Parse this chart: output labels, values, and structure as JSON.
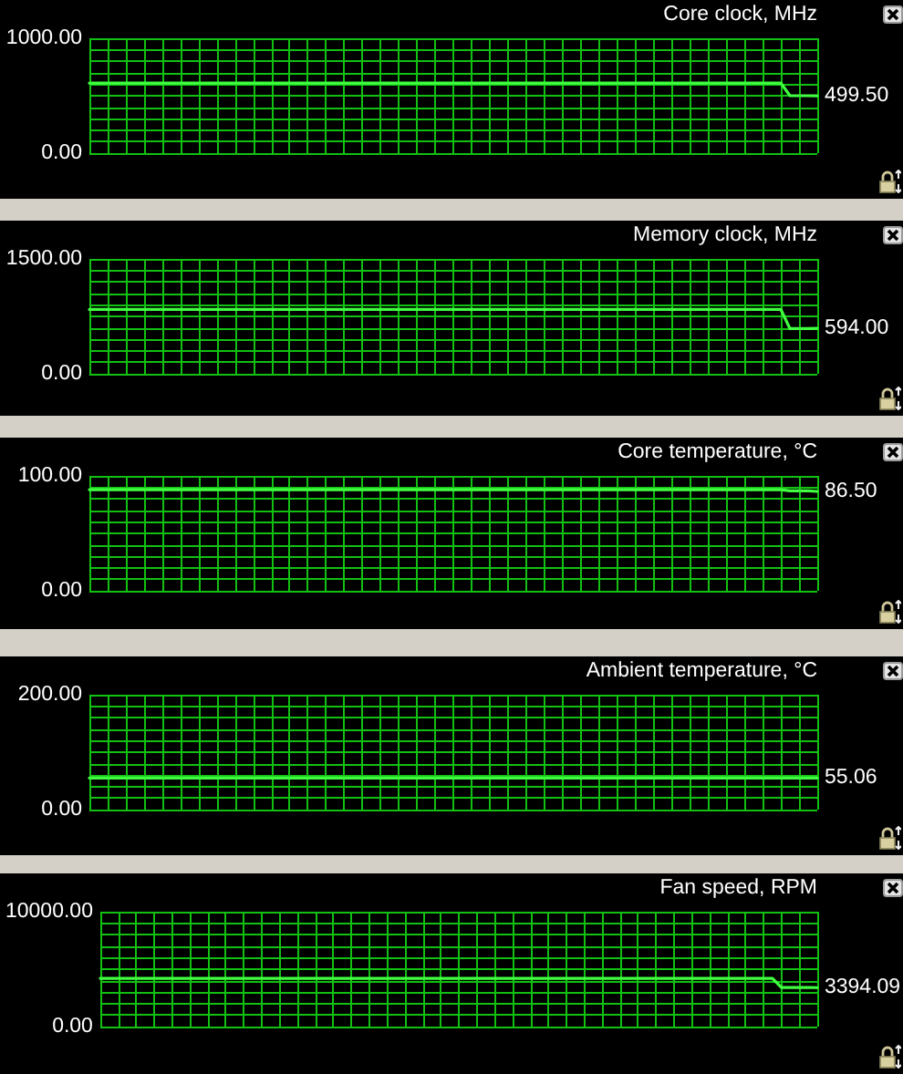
{
  "chart_data": [
    {
      "type": "line",
      "title": "Core clock, MHz",
      "categories": [
        null,
        null,
        null,
        null,
        null,
        null,
        null,
        null,
        null,
        null,
        null,
        null,
        null,
        null,
        null,
        null,
        null,
        null,
        null,
        null,
        null,
        null,
        null,
        null,
        null,
        null,
        null,
        null,
        null,
        null,
        null,
        null,
        null,
        null,
        null,
        null,
        null,
        null,
        null,
        null,
        null,
        null,
        null,
        null,
        null,
        null,
        null,
        null,
        null,
        null,
        null,
        null,
        null,
        null,
        null,
        null,
        null,
        null,
        null,
        null,
        null,
        null,
        null,
        null,
        null,
        null,
        null,
        null,
        null,
        null,
        null,
        null,
        null,
        null,
        null,
        null,
        null,
        null,
        null,
        null,
        null
      ],
      "series": [
        {
          "color": "#40ff40",
          "values": [
            610,
            610,
            610,
            610,
            610,
            610,
            610,
            610,
            610,
            610,
            610,
            610,
            610,
            610,
            610,
            610,
            610,
            610,
            610,
            610,
            610,
            610,
            610,
            610,
            610,
            610,
            610,
            610,
            610,
            610,
            610,
            610,
            610,
            610,
            610,
            610,
            610,
            610,
            610,
            610,
            610,
            610,
            610,
            610,
            610,
            610,
            610,
            610,
            610,
            610,
            610,
            610,
            610,
            610,
            610,
            610,
            610,
            610,
            610,
            610,
            610,
            610,
            610,
            610,
            610,
            610,
            610,
            610,
            610,
            610,
            610,
            610,
            610,
            610,
            610,
            610,
            610,
            500,
            500,
            500,
            499.5
          ],
          "value_labels": [
            null,
            null,
            null,
            null,
            null,
            null,
            null,
            null,
            null,
            null,
            null,
            null,
            null,
            null,
            null,
            null,
            null,
            null,
            null,
            null,
            null,
            null,
            null,
            null,
            null,
            null,
            null,
            null,
            null,
            null,
            null,
            null,
            null,
            null,
            null,
            null,
            null,
            null,
            null,
            null,
            null,
            null,
            null,
            null,
            null,
            null,
            null,
            null,
            null,
            null,
            null,
            null,
            null,
            null,
            null,
            null,
            null,
            null,
            null,
            null,
            null,
            null,
            null,
            null,
            null,
            null,
            null,
            null,
            null,
            null,
            null,
            null,
            null,
            null,
            null,
            null,
            null,
            null,
            null,
            null,
            "499.50"
          ]
        }
      ],
      "ylim": [
        0,
        1000
      ],
      "yticks": [
        {
          "value": 0,
          "label": "0.00"
        },
        {
          "value": 100,
          "label": null
        },
        {
          "value": 200,
          "label": null
        },
        {
          "value": 300,
          "label": null
        },
        {
          "value": 400,
          "label": null
        },
        {
          "value": 500,
          "label": null
        },
        {
          "value": 600,
          "label": null
        },
        {
          "value": 700,
          "label": null
        },
        {
          "value": 800,
          "label": null
        },
        {
          "value": 900,
          "label": null
        },
        {
          "value": 1000,
          "label": "1000.00"
        }
      ],
      "grid": true,
      "marker": "none",
      "tick_labels": "y"
    },
    {
      "type": "line",
      "title": "Memory clock, MHz",
      "categories": [
        null,
        null,
        null,
        null,
        null,
        null,
        null,
        null,
        null,
        null,
        null,
        null,
        null,
        null,
        null,
        null,
        null,
        null,
        null,
        null,
        null,
        null,
        null,
        null,
        null,
        null,
        null,
        null,
        null,
        null,
        null,
        null,
        null,
        null,
        null,
        null,
        null,
        null,
        null,
        null,
        null,
        null,
        null,
        null,
        null,
        null,
        null,
        null,
        null,
        null,
        null,
        null,
        null,
        null,
        null,
        null,
        null,
        null,
        null,
        null,
        null,
        null,
        null,
        null,
        null,
        null,
        null,
        null,
        null,
        null,
        null,
        null,
        null,
        null,
        null,
        null,
        null,
        null,
        null,
        null,
        null
      ],
      "series": [
        {
          "color": "#40ff40",
          "values": [
            840,
            840,
            840,
            840,
            840,
            840,
            840,
            840,
            840,
            840,
            840,
            840,
            840,
            840,
            840,
            840,
            840,
            840,
            840,
            840,
            840,
            840,
            840,
            840,
            840,
            840,
            840,
            840,
            840,
            840,
            840,
            840,
            840,
            840,
            840,
            840,
            840,
            840,
            840,
            840,
            840,
            840,
            840,
            840,
            840,
            840,
            840,
            840,
            840,
            840,
            840,
            840,
            840,
            840,
            840,
            840,
            840,
            840,
            840,
            840,
            840,
            840,
            840,
            840,
            840,
            840,
            840,
            840,
            840,
            840,
            840,
            840,
            840,
            840,
            840,
            840,
            840,
            590,
            590,
            590,
            594
          ],
          "value_labels": [
            null,
            null,
            null,
            null,
            null,
            null,
            null,
            null,
            null,
            null,
            null,
            null,
            null,
            null,
            null,
            null,
            null,
            null,
            null,
            null,
            null,
            null,
            null,
            null,
            null,
            null,
            null,
            null,
            null,
            null,
            null,
            null,
            null,
            null,
            null,
            null,
            null,
            null,
            null,
            null,
            null,
            null,
            null,
            null,
            null,
            null,
            null,
            null,
            null,
            null,
            null,
            null,
            null,
            null,
            null,
            null,
            null,
            null,
            null,
            null,
            null,
            null,
            null,
            null,
            null,
            null,
            null,
            null,
            null,
            null,
            null,
            null,
            null,
            null,
            null,
            null,
            null,
            null,
            null,
            null,
            "594.00"
          ]
        }
      ],
      "ylim": [
        0,
        1500
      ],
      "yticks": [
        {
          "value": 0,
          "label": "0.00"
        },
        {
          "value": 150,
          "label": null
        },
        {
          "value": 300,
          "label": null
        },
        {
          "value": 450,
          "label": null
        },
        {
          "value": 600,
          "label": null
        },
        {
          "value": 750,
          "label": null
        },
        {
          "value": 900,
          "label": null
        },
        {
          "value": 1050,
          "label": null
        },
        {
          "value": 1200,
          "label": null
        },
        {
          "value": 1350,
          "label": null
        },
        {
          "value": 1500,
          "label": "1500.00"
        }
      ],
      "grid": true,
      "marker": "none",
      "tick_labels": "y"
    },
    {
      "type": "line",
      "title": "Core temperature, °C",
      "categories": [
        null,
        null,
        null,
        null,
        null,
        null,
        null,
        null,
        null,
        null,
        null,
        null,
        null,
        null,
        null,
        null,
        null,
        null,
        null,
        null,
        null,
        null,
        null,
        null,
        null,
        null,
        null,
        null,
        null,
        null,
        null,
        null,
        null,
        null,
        null,
        null,
        null,
        null,
        null,
        null,
        null,
        null,
        null,
        null,
        null,
        null,
        null,
        null,
        null,
        null,
        null,
        null,
        null,
        null,
        null,
        null,
        null,
        null,
        null,
        null,
        null,
        null,
        null,
        null,
        null,
        null,
        null,
        null,
        null,
        null,
        null,
        null,
        null,
        null,
        null,
        null,
        null,
        null,
        null,
        null,
        null
      ],
      "series": [
        {
          "color": "#40ff40",
          "values": [
            88,
            88,
            88,
            88,
            88,
            88,
            88,
            88,
            88,
            88,
            88,
            88,
            88,
            88,
            88,
            88,
            88,
            88,
            88,
            88,
            88,
            88,
            88,
            88,
            88,
            88,
            88,
            88,
            88,
            88,
            88,
            88,
            88,
            88,
            88,
            88,
            88,
            88,
            88,
            88,
            88,
            88,
            88,
            88,
            88,
            88,
            88,
            88,
            88,
            88,
            88,
            88,
            88,
            88,
            88,
            88,
            88,
            88,
            88,
            88,
            88,
            88,
            88,
            88,
            88,
            88,
            88,
            88,
            88,
            88,
            88,
            88,
            88,
            88,
            88,
            88,
            88,
            87,
            87,
            87,
            86.5
          ],
          "value_labels": [
            null,
            null,
            null,
            null,
            null,
            null,
            null,
            null,
            null,
            null,
            null,
            null,
            null,
            null,
            null,
            null,
            null,
            null,
            null,
            null,
            null,
            null,
            null,
            null,
            null,
            null,
            null,
            null,
            null,
            null,
            null,
            null,
            null,
            null,
            null,
            null,
            null,
            null,
            null,
            null,
            null,
            null,
            null,
            null,
            null,
            null,
            null,
            null,
            null,
            null,
            null,
            null,
            null,
            null,
            null,
            null,
            null,
            null,
            null,
            null,
            null,
            null,
            null,
            null,
            null,
            null,
            null,
            null,
            null,
            null,
            null,
            null,
            null,
            null,
            null,
            null,
            null,
            null,
            null,
            null,
            "86.50"
          ]
        }
      ],
      "ylim": [
        0,
        100
      ],
      "yticks": [
        {
          "value": 0,
          "label": "0.00"
        },
        {
          "value": 10,
          "label": null
        },
        {
          "value": 20,
          "label": null
        },
        {
          "value": 30,
          "label": null
        },
        {
          "value": 40,
          "label": null
        },
        {
          "value": 50,
          "label": null
        },
        {
          "value": 60,
          "label": null
        },
        {
          "value": 70,
          "label": null
        },
        {
          "value": 80,
          "label": null
        },
        {
          "value": 90,
          "label": null
        },
        {
          "value": 100,
          "label": "100.00"
        }
      ],
      "grid": true,
      "marker": "none",
      "tick_labels": "y"
    },
    {
      "type": "line",
      "title": "Ambient temperature, °C",
      "categories": [
        null,
        null,
        null,
        null,
        null,
        null,
        null,
        null,
        null,
        null,
        null,
        null,
        null,
        null,
        null,
        null,
        null,
        null,
        null,
        null,
        null,
        null,
        null,
        null,
        null,
        null,
        null,
        null,
        null,
        null,
        null,
        null,
        null,
        null,
        null,
        null,
        null,
        null,
        null,
        null,
        null,
        null,
        null,
        null,
        null,
        null,
        null,
        null,
        null,
        null,
        null,
        null,
        null,
        null,
        null,
        null,
        null,
        null,
        null,
        null,
        null,
        null,
        null,
        null,
        null,
        null,
        null,
        null,
        null,
        null,
        null,
        null,
        null,
        null,
        null,
        null,
        null,
        null,
        null,
        null,
        null
      ],
      "series": [
        {
          "color": "#40ff40",
          "values": [
            55,
            55,
            55,
            55,
            55,
            55,
            55,
            55,
            55,
            55,
            55,
            55,
            55,
            55,
            55,
            55,
            55,
            55,
            55,
            55,
            55,
            55,
            55,
            55,
            55,
            55,
            55,
            55,
            55,
            55,
            55,
            55,
            55,
            55,
            55,
            55,
            55,
            55,
            55,
            55,
            55,
            55,
            55,
            55,
            55,
            55,
            55,
            55,
            55,
            55,
            55,
            55,
            55,
            55,
            55,
            55,
            55,
            55,
            55,
            55,
            55,
            55,
            55,
            55,
            55,
            55,
            55,
            55,
            55,
            55,
            55,
            55,
            55,
            55,
            55,
            55,
            55,
            55,
            55,
            55,
            55.06
          ],
          "value_labels": [
            null,
            null,
            null,
            null,
            null,
            null,
            null,
            null,
            null,
            null,
            null,
            null,
            null,
            null,
            null,
            null,
            null,
            null,
            null,
            null,
            null,
            null,
            null,
            null,
            null,
            null,
            null,
            null,
            null,
            null,
            null,
            null,
            null,
            null,
            null,
            null,
            null,
            null,
            null,
            null,
            null,
            null,
            null,
            null,
            null,
            null,
            null,
            null,
            null,
            null,
            null,
            null,
            null,
            null,
            null,
            null,
            null,
            null,
            null,
            null,
            null,
            null,
            null,
            null,
            null,
            null,
            null,
            null,
            null,
            null,
            null,
            null,
            null,
            null,
            null,
            null,
            null,
            null,
            null,
            null,
            "55.06"
          ]
        }
      ],
      "ylim": [
        0,
        200
      ],
      "yticks": [
        {
          "value": 0,
          "label": "0.00"
        },
        {
          "value": 20,
          "label": null
        },
        {
          "value": 40,
          "label": null
        },
        {
          "value": 60,
          "label": null
        },
        {
          "value": 80,
          "label": null
        },
        {
          "value": 100,
          "label": null
        },
        {
          "value": 120,
          "label": null
        },
        {
          "value": 140,
          "label": null
        },
        {
          "value": 160,
          "label": null
        },
        {
          "value": 180,
          "label": null
        },
        {
          "value": 200,
          "label": "200.00"
        }
      ],
      "grid": true,
      "marker": "none",
      "tick_labels": "y"
    },
    {
      "type": "line",
      "title": "Fan speed, RPM",
      "categories": [
        null,
        null,
        null,
        null,
        null,
        null,
        null,
        null,
        null,
        null,
        null,
        null,
        null,
        null,
        null,
        null,
        null,
        null,
        null,
        null,
        null,
        null,
        null,
        null,
        null,
        null,
        null,
        null,
        null,
        null,
        null,
        null,
        null,
        null,
        null,
        null,
        null,
        null,
        null,
        null,
        null,
        null,
        null,
        null,
        null,
        null,
        null,
        null,
        null,
        null,
        null,
        null,
        null,
        null,
        null,
        null,
        null,
        null,
        null,
        null,
        null,
        null,
        null,
        null,
        null,
        null,
        null,
        null,
        null,
        null,
        null,
        null,
        null,
        null,
        null,
        null,
        null,
        null,
        null,
        null,
        null
      ],
      "series": [
        {
          "color": "#40ff40",
          "values": [
            4200,
            4200,
            4200,
            4200,
            4200,
            4200,
            4200,
            4200,
            4200,
            4200,
            4200,
            4200,
            4200,
            4200,
            4200,
            4200,
            4200,
            4200,
            4200,
            4200,
            4200,
            4200,
            4200,
            4200,
            4200,
            4200,
            4200,
            4200,
            4200,
            4200,
            4200,
            4200,
            4200,
            4200,
            4200,
            4200,
            4200,
            4200,
            4200,
            4200,
            4200,
            4200,
            4200,
            4200,
            4200,
            4200,
            4200,
            4200,
            4200,
            4200,
            4200,
            4200,
            4200,
            4200,
            4200,
            4200,
            4200,
            4200,
            4200,
            4200,
            4200,
            4200,
            4200,
            4200,
            4200,
            4200,
            4200,
            4200,
            4200,
            4200,
            4200,
            4200,
            4200,
            4200,
            4200,
            4200,
            3400,
            3400,
            3400,
            3400,
            3394.09
          ],
          "value_labels": [
            null,
            null,
            null,
            null,
            null,
            null,
            null,
            null,
            null,
            null,
            null,
            null,
            null,
            null,
            null,
            null,
            null,
            null,
            null,
            null,
            null,
            null,
            null,
            null,
            null,
            null,
            null,
            null,
            null,
            null,
            null,
            null,
            null,
            null,
            null,
            null,
            null,
            null,
            null,
            null,
            null,
            null,
            null,
            null,
            null,
            null,
            null,
            null,
            null,
            null,
            null,
            null,
            null,
            null,
            null,
            null,
            null,
            null,
            null,
            null,
            null,
            null,
            null,
            null,
            null,
            null,
            null,
            null,
            null,
            null,
            null,
            null,
            null,
            null,
            null,
            null,
            null,
            null,
            null,
            null,
            "3394.09"
          ]
        }
      ],
      "ylim": [
        0,
        10000
      ],
      "yticks": [
        {
          "value": 0,
          "label": "0.00"
        },
        {
          "value": 1000,
          "label": null
        },
        {
          "value": 2000,
          "label": null
        },
        {
          "value": 3000,
          "label": null
        },
        {
          "value": 4000,
          "label": null
        },
        {
          "value": 5000,
          "label": null
        },
        {
          "value": 6000,
          "label": null
        },
        {
          "value": 7000,
          "label": null
        },
        {
          "value": 8000,
          "label": null
        },
        {
          "value": 9000,
          "label": null
        },
        {
          "value": 10000,
          "label": "10000.00"
        }
      ],
      "grid": true,
      "marker": "none",
      "tick_labels": "y"
    }
  ]
}
